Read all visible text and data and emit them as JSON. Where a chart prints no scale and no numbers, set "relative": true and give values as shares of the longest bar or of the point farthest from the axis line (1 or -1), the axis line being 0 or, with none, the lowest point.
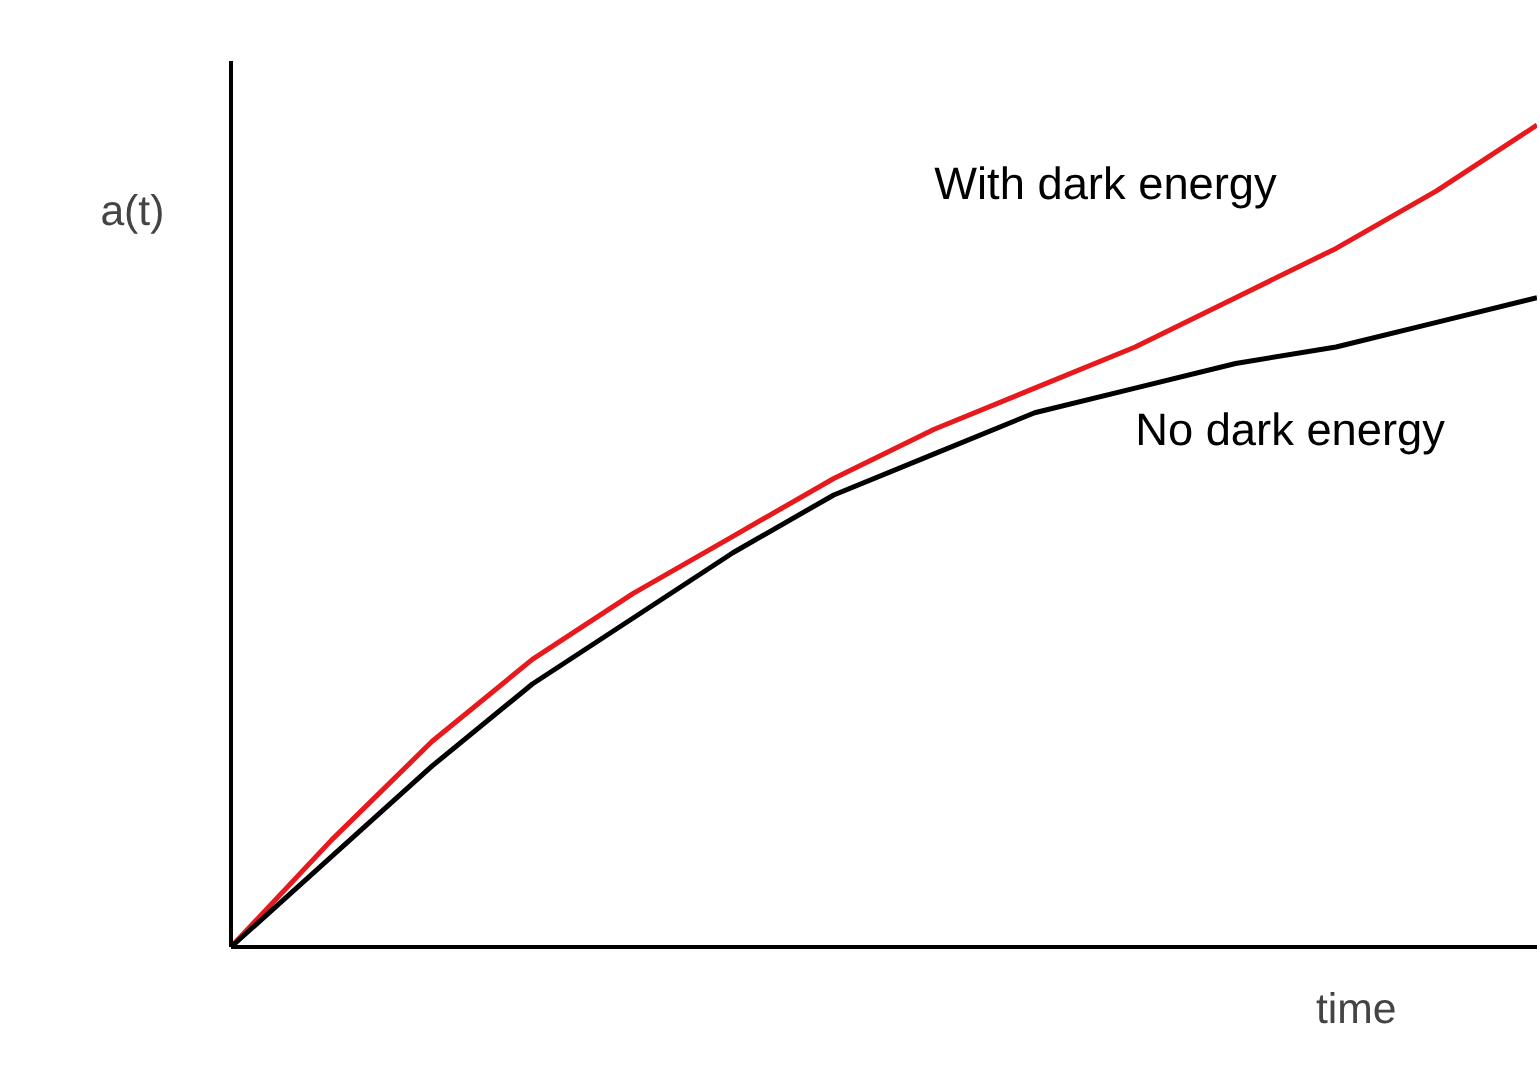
{
  "chart_data": {
    "type": "line",
    "relative": true,
    "xlabel": "time",
    "ylabel": "a(t)",
    "legend": false,
    "categories": [
      null,
      null,
      null,
      null,
      null,
      null,
      null,
      null,
      null,
      null,
      null,
      null,
      null,
      null
    ],
    "series": [
      {
        "name": "With dark energy",
        "color": "#e8191c",
        "values": [
          0,
          0.13,
          0.25,
          0.35,
          0.43,
          0.5,
          0.57,
          0.63,
          0.68,
          0.73,
          0.79,
          0.85,
          0.92,
          1
        ]
      },
      {
        "name": "No dark energy",
        "color": "#000000",
        "values": [
          0,
          0.11,
          0.22,
          0.32,
          0.4,
          0.48,
          0.55,
          0.6,
          0.65,
          0.68,
          0.71,
          0.73,
          0.76,
          0.79
        ]
      }
    ]
  }
}
